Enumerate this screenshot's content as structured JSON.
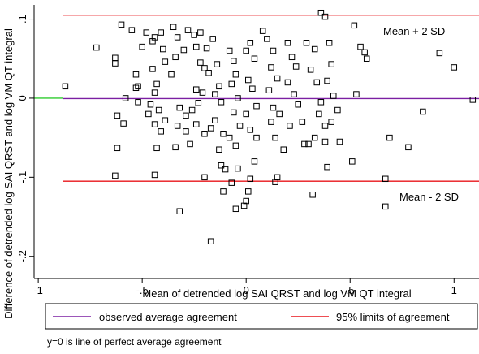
{
  "chart_data": {
    "type": "scatter",
    "xlabel": "Mean of detrended log SAI QRST and log VM QT integral",
    "ylabel": "Difference of detrended log SAI QRST and log VM QT integral",
    "xlim": [
      -1.02,
      1.12
    ],
    "ylim": [
      -0.228,
      0.118
    ],
    "x_ticks": [
      -1,
      -0.5,
      0,
      0.5,
      1
    ],
    "x_tick_labels": [
      "-1",
      "-.5",
      "0",
      ".5",
      "1"
    ],
    "y_ticks": [
      0.1,
      0,
      -0.1,
      -0.2
    ],
    "y_tick_labels": [
      ".1",
      "0",
      "-.1",
      "-.2"
    ],
    "grid": false,
    "legend_position": "bottom",
    "reference_lines": [
      {
        "label": "Mean + 2 SD",
        "y": 0.105,
        "color": "#e8141a",
        "x_from": -0.88
      },
      {
        "label": "Mean - 2 SD",
        "y": -0.105,
        "color": "#e8141a",
        "x_from": -0.88
      },
      {
        "label": "observed average agreement",
        "y": -0.0005,
        "color": "#7b1fa2",
        "x_from": -0.88
      },
      {
        "label": "",
        "y": 0.0,
        "color": "#2ecc2e",
        "x_from": -1.02,
        "x_to": -0.88
      }
    ],
    "annotations": [
      {
        "text": "Mean + 2 SD",
        "x": 0.72,
        "y": 0.09
      },
      {
        "text": "Mean - 2 SD",
        "x": 0.72,
        "y": -0.12
      }
    ],
    "legend": [
      {
        "label": "observed average agreement",
        "color": "#7b1fa2"
      },
      {
        "label": "95% limits of agreement",
        "color": "#e8141a"
      }
    ],
    "note": "y=0 is line of perfect average agreement",
    "colors": {
      "marker": "#000000",
      "limits": "#e8141a",
      "observed": "#7b1fa2",
      "perfect": "#2ecc2e"
    },
    "points": [
      [
        -0.87,
        0.015
      ],
      [
        -0.72,
        0.064
      ],
      [
        -0.6,
        0.093
      ],
      [
        -0.55,
        0.086
      ],
      [
        -0.63,
        0.051
      ],
      [
        -0.63,
        0.044
      ],
      [
        -0.62,
        -0.022
      ],
      [
        -0.59,
        -0.032
      ],
      [
        -0.62,
        -0.063
      ],
      [
        -0.63,
        -0.098
      ],
      [
        -0.58,
        0.0
      ],
      [
        -0.53,
        0.03
      ],
      [
        -0.53,
        0.013
      ],
      [
        -0.52,
        0.015
      ],
      [
        -0.52,
        -0.005
      ],
      [
        -0.5,
        0.065
      ],
      [
        -0.48,
        0.083
      ],
      [
        -0.45,
        0.072
      ],
      [
        -0.44,
        0.077
      ],
      [
        -0.41,
        0.083
      ],
      [
        -0.4,
        0.062
      ],
      [
        -0.39,
        0.046
      ],
      [
        -0.45,
        0.037
      ],
      [
        -0.43,
        0.018
      ],
      [
        -0.44,
        0.007
      ],
      [
        -0.46,
        -0.008
      ],
      [
        -0.47,
        -0.02
      ],
      [
        -0.42,
        -0.015
      ],
      [
        -0.44,
        -0.033
      ],
      [
        -0.41,
        -0.042
      ],
      [
        -0.39,
        -0.028
      ],
      [
        -0.43,
        -0.063
      ],
      [
        -0.44,
        -0.097
      ],
      [
        -0.35,
        0.09
      ],
      [
        -0.33,
        0.077
      ],
      [
        -0.34,
        0.052
      ],
      [
        -0.36,
        0.03
      ],
      [
        -0.3,
        0.061
      ],
      [
        -0.32,
        -0.012
      ],
      [
        -0.29,
        -0.022
      ],
      [
        -0.33,
        -0.035
      ],
      [
        -0.29,
        -0.042
      ],
      [
        -0.34,
        -0.062
      ],
      [
        -0.32,
        -0.143
      ],
      [
        -0.28,
        0.086
      ],
      [
        -0.25,
        0.08
      ],
      [
        -0.22,
        0.083
      ],
      [
        -0.24,
        0.065
      ],
      [
        -0.19,
        0.063
      ],
      [
        -0.22,
        0.045
      ],
      [
        -0.2,
        0.038
      ],
      [
        -0.18,
        0.032
      ],
      [
        -0.24,
        0.011
      ],
      [
        -0.21,
        0.007
      ],
      [
        -0.23,
        -0.006
      ],
      [
        -0.26,
        -0.015
      ],
      [
        -0.24,
        -0.033
      ],
      [
        -0.27,
        -0.058
      ],
      [
        -0.2,
        -0.045
      ],
      [
        -0.17,
        -0.038
      ],
      [
        -0.2,
        -0.1
      ],
      [
        -0.16,
        0.075
      ],
      [
        -0.14,
        0.043
      ],
      [
        -0.13,
        0.015
      ],
      [
        -0.15,
        0.005
      ],
      [
        -0.12,
        -0.005
      ],
      [
        -0.15,
        -0.028
      ],
      [
        -0.11,
        -0.045
      ],
      [
        -0.13,
        -0.065
      ],
      [
        -0.12,
        -0.085
      ],
      [
        -0.1,
        -0.09
      ],
      [
        -0.08,
        0.06
      ],
      [
        -0.06,
        0.047
      ],
      [
        -0.05,
        0.03
      ],
      [
        -0.07,
        0.018
      ],
      [
        -0.04,
        0.0
      ],
      [
        -0.06,
        -0.018
      ],
      [
        -0.03,
        -0.035
      ],
      [
        -0.05,
        -0.06
      ],
      [
        -0.08,
        -0.05
      ],
      [
        -0.04,
        -0.089
      ],
      [
        -0.07,
        -0.107
      ],
      [
        -0.05,
        -0.14
      ],
      [
        0.0,
        0.06
      ],
      [
        0.02,
        0.07
      ],
      [
        0.04,
        0.05
      ],
      [
        0.01,
        0.023
      ],
      [
        0.03,
        0.012
      ],
      [
        0.05,
        -0.01
      ],
      [
        0.0,
        -0.02
      ],
      [
        0.02,
        -0.04
      ],
      [
        0.05,
        -0.05
      ],
      [
        0.04,
        -0.08
      ],
      [
        0.02,
        -0.102
      ],
      [
        0.01,
        -0.118
      ],
      [
        0.0,
        -0.13
      ],
      [
        -0.01,
        -0.136
      ],
      [
        -0.11,
        -0.118
      ],
      [
        -0.17,
        -0.181
      ],
      [
        0.08,
        0.085
      ],
      [
        0.1,
        0.075
      ],
      [
        0.13,
        0.06
      ],
      [
        0.12,
        0.039
      ],
      [
        0.15,
        0.025
      ],
      [
        0.11,
        0.01
      ],
      [
        0.13,
        -0.012
      ],
      [
        0.16,
        -0.02
      ],
      [
        0.12,
        -0.03
      ],
      [
        0.14,
        -0.05
      ],
      [
        0.18,
        -0.065
      ],
      [
        0.15,
        -0.1
      ],
      [
        0.14,
        -0.106
      ],
      [
        0.2,
        0.07
      ],
      [
        0.22,
        0.052
      ],
      [
        0.24,
        0.04
      ],
      [
        0.2,
        0.02
      ],
      [
        0.23,
        0.005
      ],
      [
        0.25,
        -0.008
      ],
      [
        0.21,
        -0.035
      ],
      [
        0.27,
        -0.03
      ],
      [
        0.28,
        -0.058
      ],
      [
        0.3,
        -0.058
      ],
      [
        0.29,
        0.07
      ],
      [
        0.33,
        0.062
      ],
      [
        0.31,
        0.036
      ],
      [
        0.34,
        0.02
      ],
      [
        0.36,
        -0.005
      ],
      [
        0.35,
        -0.02
      ],
      [
        0.38,
        -0.035
      ],
      [
        0.33,
        -0.05
      ],
      [
        0.32,
        -0.122
      ],
      [
        0.36,
        0.108
      ],
      [
        0.38,
        0.103
      ],
      [
        0.4,
        0.07
      ],
      [
        0.41,
        0.043
      ],
      [
        0.39,
        0.022
      ],
      [
        0.42,
        0.003
      ],
      [
        0.44,
        -0.015
      ],
      [
        0.41,
        -0.03
      ],
      [
        0.38,
        -0.055
      ],
      [
        0.39,
        -0.087
      ],
      [
        0.45,
        -0.055
      ],
      [
        0.52,
        0.092
      ],
      [
        0.55,
        0.065
      ],
      [
        0.57,
        0.058
      ],
      [
        0.53,
        0.005
      ],
      [
        0.51,
        -0.08
      ],
      [
        0.58,
        0.05
      ],
      [
        0.67,
        -0.102
      ],
      [
        0.67,
        -0.137
      ],
      [
        0.69,
        -0.05
      ],
      [
        0.78,
        -0.062
      ],
      [
        0.85,
        -0.017
      ],
      [
        0.93,
        0.057
      ],
      [
        1.0,
        0.039
      ],
      [
        1.09,
        -0.002
      ]
    ]
  },
  "axis": {
    "xlabel": "Mean of detrended log SAI QRST and log VM QT integral",
    "ylabel": "Difference of detrended log SAI QRST and log VM QT integral"
  },
  "legend_items": {
    "observed_label": "observed average agreement",
    "limits_label": "95% limits of agreement"
  },
  "annotation_text": {
    "upper": "Mean + 2 SD",
    "lower": "Mean - 2 SD"
  },
  "footnote": "y=0 is line of perfect average agreement"
}
